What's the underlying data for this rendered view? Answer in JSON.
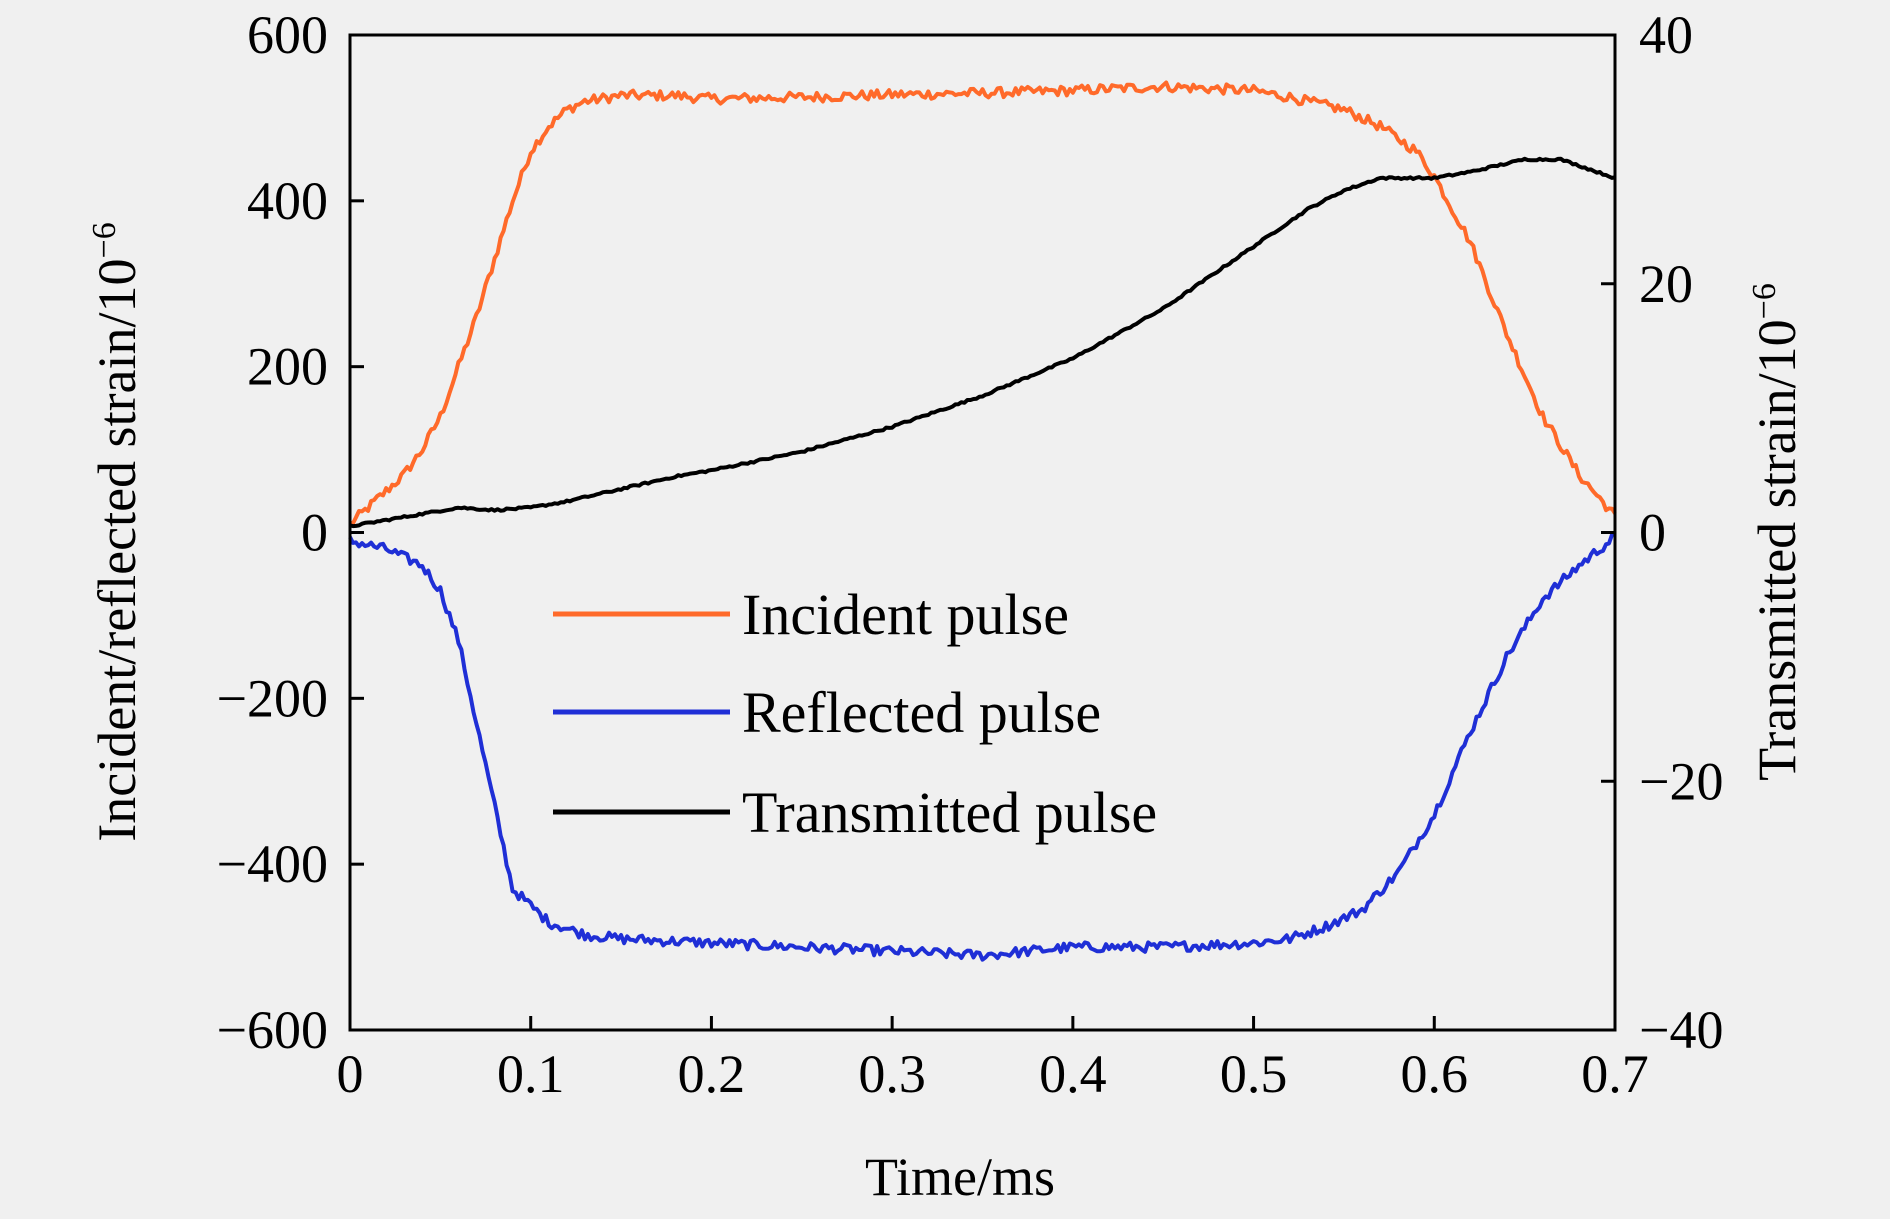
{
  "chart_data": {
    "type": "line",
    "xlabel": "Time/ms",
    "ylabel_left": "Incident/reflected strain/10",
    "ylabel_left_exp": "−6",
    "ylabel_right": "Transmitted strain/10",
    "ylabel_right_exp": "−6",
    "xlim": [
      0,
      0.7
    ],
    "ylim_left": [
      -600,
      600
    ],
    "ylim_right": [
      -40,
      40
    ],
    "x_ticks": [
      "0",
      "0.1",
      "0.2",
      "0.3",
      "0.4",
      "0.5",
      "0.6",
      "0.7"
    ],
    "y_left_ticks": [
      "600",
      "400",
      "200",
      "0",
      "−200",
      "−400",
      "−600"
    ],
    "y_right_ticks": [
      "40",
      "20",
      "0",
      "−20",
      "−40"
    ],
    "legend_position": "center-left",
    "grid": false,
    "series": [
      {
        "name": "Incident pulse",
        "axis": "left",
        "color": "#ff6a2a",
        "noise": 6,
        "x": [
          0,
          0.01,
          0.02,
          0.03,
          0.04,
          0.05,
          0.06,
          0.07,
          0.08,
          0.09,
          0.1,
          0.11,
          0.12,
          0.13,
          0.15,
          0.18,
          0.2,
          0.25,
          0.3,
          0.35,
          0.4,
          0.45,
          0.5,
          0.52,
          0.55,
          0.57,
          0.59,
          0.6,
          0.62,
          0.64,
          0.66,
          0.68,
          0.7
        ],
        "y": [
          10,
          30,
          50,
          70,
          100,
          140,
          200,
          260,
          330,
          400,
          460,
          490,
          510,
          520,
          527,
          527,
          523,
          525,
          528,
          530,
          533,
          538,
          533,
          525,
          510,
          490,
          460,
          430,
          350,
          240,
          140,
          70,
          20
        ]
      },
      {
        "name": "Reflected pulse",
        "axis": "left",
        "color": "#1f2fd6",
        "noise": 6,
        "x": [
          0,
          0.02,
          0.04,
          0.05,
          0.06,
          0.07,
          0.08,
          0.09,
          0.1,
          0.11,
          0.13,
          0.15,
          0.2,
          0.25,
          0.3,
          0.35,
          0.4,
          0.45,
          0.5,
          0.52,
          0.54,
          0.56,
          0.58,
          0.6,
          0.62,
          0.64,
          0.66,
          0.68,
          0.7
        ],
        "y": [
          -10,
          -20,
          -40,
          -70,
          -130,
          -230,
          -330,
          -430,
          -450,
          -470,
          -485,
          -490,
          -495,
          -500,
          -505,
          -510,
          -500,
          -500,
          -495,
          -490,
          -475,
          -455,
          -410,
          -340,
          -240,
          -150,
          -80,
          -40,
          -5
        ]
      },
      {
        "name": "Transmitted pulse",
        "axis": "right",
        "color": "#000000",
        "noise": 0.08,
        "x": [
          0,
          0.02,
          0.04,
          0.06,
          0.08,
          0.1,
          0.12,
          0.15,
          0.18,
          0.2,
          0.25,
          0.3,
          0.35,
          0.4,
          0.45,
          0.5,
          0.53,
          0.55,
          0.57,
          0.6,
          0.62,
          0.65,
          0.67,
          0.7
        ],
        "y": [
          0.5,
          1.0,
          1.5,
          2.0,
          1.8,
          2.0,
          2.5,
          3.5,
          4.5,
          5.0,
          6.5,
          8.5,
          11,
          14,
          18,
          23,
          26,
          27.5,
          28.5,
          28.5,
          29,
          30,
          30,
          28.5
        ]
      }
    ]
  }
}
